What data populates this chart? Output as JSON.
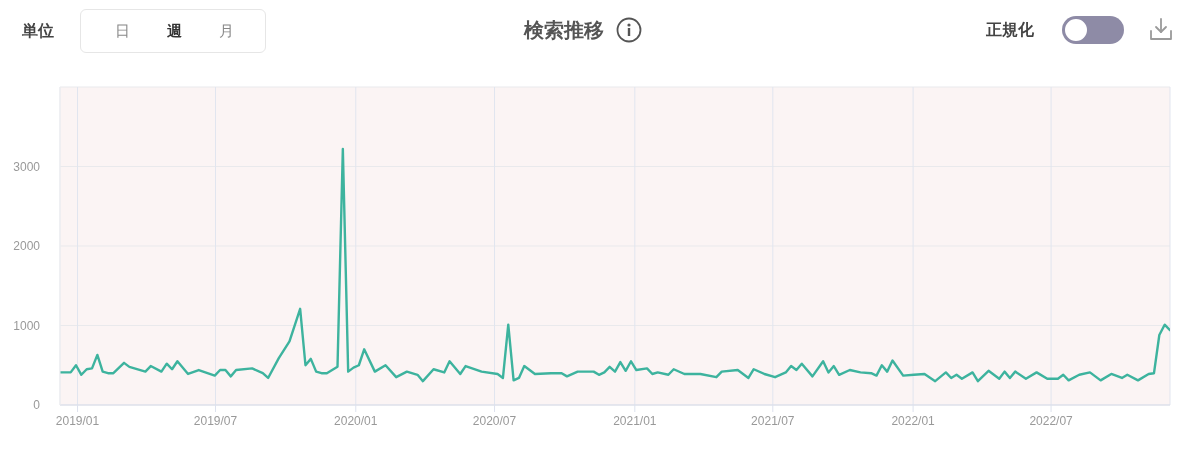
{
  "chart_data": {
    "type": "line",
    "title": "検索推移",
    "x": [
      "2018-12-09",
      "2018-12-23",
      "2018-12-30",
      "2019-01-06",
      "2019-01-13",
      "2019-01-20",
      "2019-01-27",
      "2019-02-03",
      "2019-02-10",
      "2019-02-17",
      "2019-03-03",
      "2019-03-10",
      "2019-03-31",
      "2019-04-07",
      "2019-04-21",
      "2019-04-28",
      "2019-05-05",
      "2019-05-12",
      "2019-05-26",
      "2019-06-09",
      "2019-06-30",
      "2019-07-07",
      "2019-07-14",
      "2019-07-21",
      "2019-07-28",
      "2019-08-18",
      "2019-09-01",
      "2019-09-08",
      "2019-09-22",
      "2019-10-06",
      "2019-10-20",
      "2019-10-27",
      "2019-11-03",
      "2019-11-10",
      "2019-11-17",
      "2019-11-24",
      "2019-12-08",
      "2019-12-15",
      "2019-12-22",
      "2019-12-29",
      "2020-01-05",
      "2020-01-12",
      "2020-01-26",
      "2020-02-09",
      "2020-02-23",
      "2020-03-08",
      "2020-03-22",
      "2020-03-29",
      "2020-04-12",
      "2020-04-26",
      "2020-05-03",
      "2020-05-17",
      "2020-05-24",
      "2020-06-14",
      "2020-07-05",
      "2020-07-12",
      "2020-07-19",
      "2020-07-26",
      "2020-08-02",
      "2020-08-09",
      "2020-08-23",
      "2020-09-13",
      "2020-09-27",
      "2020-10-04",
      "2020-10-18",
      "2020-11-08",
      "2020-11-15",
      "2020-11-22",
      "2020-11-29",
      "2020-12-06",
      "2020-12-13",
      "2020-12-20",
      "2020-12-27",
      "2021-01-03",
      "2021-01-17",
      "2021-01-24",
      "2021-01-31",
      "2021-02-14",
      "2021-02-21",
      "2021-03-07",
      "2021-03-28",
      "2021-04-18",
      "2021-04-25",
      "2021-05-16",
      "2021-05-30",
      "2021-06-06",
      "2021-06-20",
      "2021-07-04",
      "2021-07-18",
      "2021-07-25",
      "2021-08-01",
      "2021-08-08",
      "2021-08-22",
      "2021-09-05",
      "2021-09-12",
      "2021-09-19",
      "2021-09-26",
      "2021-10-10",
      "2021-10-24",
      "2021-11-07",
      "2021-11-14",
      "2021-11-21",
      "2021-11-28",
      "2021-12-05",
      "2021-12-19",
      "2022-01-02",
      "2022-01-16",
      "2022-01-30",
      "2022-02-13",
      "2022-02-20",
      "2022-02-27",
      "2022-03-06",
      "2022-03-20",
      "2022-03-27",
      "2022-04-10",
      "2022-04-24",
      "2022-05-01",
      "2022-05-08",
      "2022-05-15",
      "2022-05-29",
      "2022-06-12",
      "2022-06-26",
      "2022-07-10",
      "2022-07-17",
      "2022-07-24",
      "2022-08-07",
      "2022-08-21",
      "2022-09-04",
      "2022-09-18",
      "2022-10-02",
      "2022-10-09",
      "2022-10-23",
      "2022-11-06",
      "2022-11-13",
      "2022-11-20",
      "2022-11-27",
      "2022-12-04"
    ],
    "series": [
      {
        "color": "#3db39e",
        "values": [
          410,
          410,
          500,
          380,
          450,
          460,
          630,
          420,
          400,
          400,
          530,
          480,
          420,
          490,
          420,
          520,
          450,
          550,
          390,
          440,
          370,
          440,
          440,
          360,
          440,
          460,
          400,
          340,
          590,
          800,
          1210,
          500,
          580,
          420,
          400,
          400,
          480,
          3220,
          420,
          470,
          500,
          700,
          420,
          500,
          350,
          420,
          380,
          300,
          450,
          410,
          550,
          390,
          490,
          420,
          390,
          340,
          1010,
          310,
          340,
          490,
          390,
          400,
          400,
          360,
          420,
          420,
          380,
          410,
          480,
          420,
          540,
          430,
          550,
          440,
          460,
          390,
          410,
          380,
          450,
          390,
          390,
          350,
          420,
          440,
          340,
          450,
          390,
          350,
          410,
          490,
          440,
          520,
          360,
          550,
          410,
          490,
          380,
          440,
          410,
          400,
          370,
          500,
          420,
          560,
          370,
          380,
          390,
          300,
          410,
          340,
          380,
          330,
          410,
          300,
          430,
          330,
          420,
          340,
          420,
          330,
          410,
          330,
          330,
          380,
          310,
          380,
          410,
          310,
          390,
          340,
          380,
          310,
          390,
          400,
          880,
          1010,
          940
        ]
      }
    ],
    "xlim": [
      "2018-12-09",
      "2022-12-04"
    ],
    "xticks": [
      {
        "value": "2019-01",
        "label": "2019/01"
      },
      {
        "value": "2019-07",
        "label": "2019/07"
      },
      {
        "value": "2020-01",
        "label": "2020/01"
      },
      {
        "value": "2020-07",
        "label": "2020/07"
      },
      {
        "value": "2021-01",
        "label": "2021/01"
      },
      {
        "value": "2021-07",
        "label": "2021/07"
      },
      {
        "value": "2022-01",
        "label": "2022/01"
      },
      {
        "value": "2022-07",
        "label": "2022/07"
      }
    ],
    "ylim": [
      0,
      4000
    ],
    "yticks": [
      0,
      1000,
      2000,
      3000,
      {
        "value": 4000,
        "label": null
      }
    ],
    "grid": true,
    "legend": false,
    "marker": "none",
    "line_style": "solid",
    "annotations": [
      "単位",
      "日",
      "週",
      "月",
      "正規化"
    ]
  }
}
